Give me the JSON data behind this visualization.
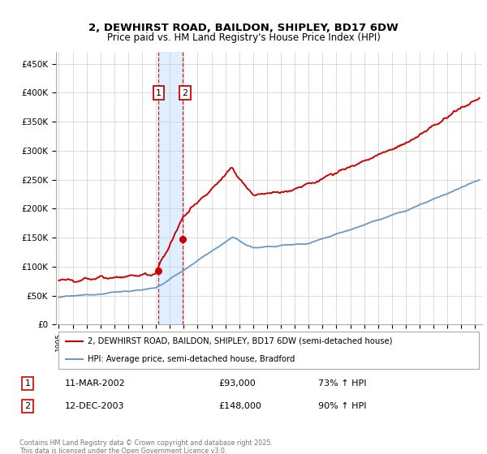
{
  "title": "2, DEWHIRST ROAD, BAILDON, SHIPLEY, BD17 6DW",
  "subtitle": "Price paid vs. HM Land Registry's House Price Index (HPI)",
  "xlim": [
    1994.8,
    2025.5
  ],
  "ylim": [
    0,
    470000
  ],
  "yticks": [
    0,
    50000,
    100000,
    150000,
    200000,
    250000,
    300000,
    350000,
    400000,
    450000
  ],
  "ytick_labels": [
    "£0",
    "£50K",
    "£100K",
    "£150K",
    "£200K",
    "£250K",
    "£300K",
    "£350K",
    "£400K",
    "£450K"
  ],
  "xticks": [
    1995,
    1996,
    1997,
    1998,
    1999,
    2000,
    2001,
    2002,
    2003,
    2004,
    2005,
    2006,
    2007,
    2008,
    2009,
    2010,
    2011,
    2012,
    2013,
    2014,
    2015,
    2016,
    2017,
    2018,
    2019,
    2020,
    2021,
    2022,
    2023,
    2024,
    2025
  ],
  "sale1_x": 2002.19,
  "sale1_y": 93000,
  "sale2_x": 2003.95,
  "sale2_y": 148000,
  "property_color": "#cc0000",
  "hpi_color": "#6699cc",
  "shade_color": "#ddeeff",
  "vline_color": "#cc0000",
  "label_box_color": "#cc0000",
  "legend_property": "2, DEWHIRST ROAD, BAILDON, SHIPLEY, BD17 6DW (semi-detached house)",
  "legend_hpi": "HPI: Average price, semi-detached house, Bradford",
  "sale1_label": "1",
  "sale2_label": "2",
  "sale1_date": "11-MAR-2002",
  "sale1_price": "£93,000",
  "sale1_hpi": "73% ↑ HPI",
  "sale2_date": "12-DEC-2003",
  "sale2_price": "£148,000",
  "sale2_hpi": "90% ↑ HPI",
  "footer": "Contains HM Land Registry data © Crown copyright and database right 2025.\nThis data is licensed under the Open Government Licence v3.0."
}
